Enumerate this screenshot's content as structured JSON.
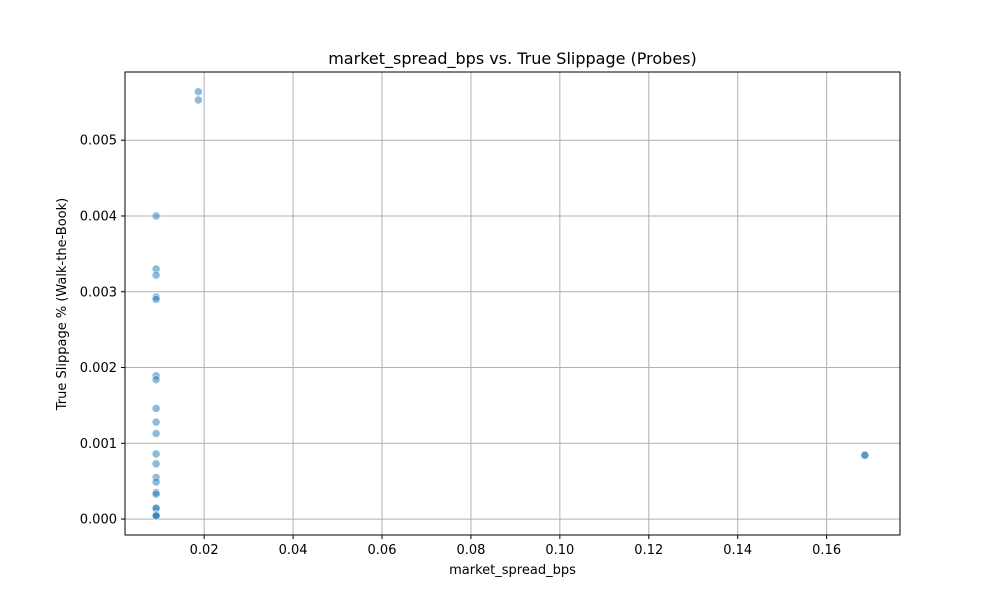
{
  "chart_data": {
    "type": "scatter",
    "title": "market_spread_bps vs. True Slippage (Probes)",
    "xlabel": "market_spread_bps",
    "ylabel": "True Slippage % (Walk-the-Book)",
    "xlim": [
      0.0022,
      0.1765
    ],
    "ylim": [
      -0.00021,
      0.0059
    ],
    "xticks": [
      0.02,
      0.04,
      0.06,
      0.08,
      0.1,
      0.12,
      0.14,
      0.16
    ],
    "xtick_labels": [
      "0.02",
      "0.04",
      "0.06",
      "0.08",
      "0.10",
      "0.12",
      "0.14",
      "0.16"
    ],
    "yticks": [
      0.0,
      0.001,
      0.002,
      0.003,
      0.004,
      0.005
    ],
    "ytick_labels": [
      "0.000",
      "0.001",
      "0.002",
      "0.003",
      "0.004",
      "0.005"
    ],
    "grid": true,
    "marker_color": "#1f77b4",
    "marker_alpha": 0.5,
    "points": [
      [
        0.0187,
        0.00564
      ],
      [
        0.0187,
        0.00553
      ],
      [
        0.0092,
        0.004
      ],
      [
        0.0092,
        0.0033
      ],
      [
        0.0092,
        0.00322
      ],
      [
        0.0092,
        0.00293
      ],
      [
        0.0092,
        0.0029
      ],
      [
        0.0092,
        0.00189
      ],
      [
        0.0092,
        0.00184
      ],
      [
        0.0092,
        0.00146
      ],
      [
        0.0092,
        0.00128
      ],
      [
        0.0092,
        0.00113
      ],
      [
        0.0092,
        0.00086
      ],
      [
        0.0092,
        0.00073
      ],
      [
        0.0092,
        0.00055
      ],
      [
        0.0092,
        0.00049
      ],
      [
        0.0092,
        0.00035
      ],
      [
        0.0092,
        0.00033
      ],
      [
        0.0092,
        0.00015
      ],
      [
        0.0092,
        0.00014
      ],
      [
        0.0092,
        6e-05
      ],
      [
        0.0092,
        5e-05
      ],
      [
        0.0092,
        4e-05
      ],
      [
        0.1686,
        0.00085
      ],
      [
        0.1686,
        0.00084
      ]
    ]
  }
}
